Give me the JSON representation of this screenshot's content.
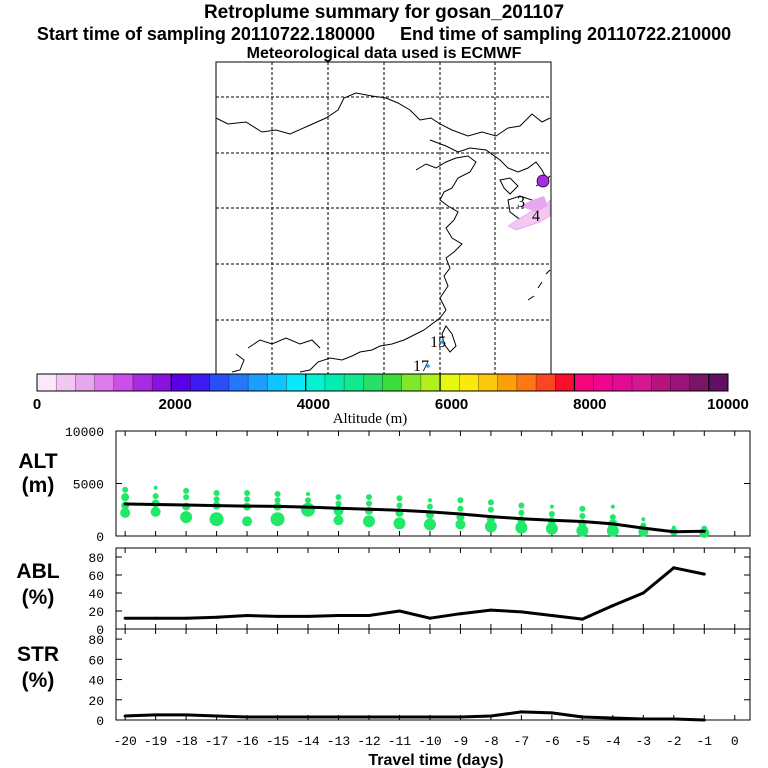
{
  "header": {
    "title": "Retroplume summary for gosan_201107",
    "sampling_line": "Start time of sampling 20110722.180000     End time of sampling 20110722.210000",
    "met_line": "Meteorological data used is ECMWF"
  },
  "map": {
    "labels": [
      "3",
      "4",
      "15",
      "17"
    ]
  },
  "colorbar": {
    "title": "Altitude (m)",
    "ticks": [
      "0",
      "2000",
      "4000",
      "6000",
      "8000",
      "10000"
    ],
    "colors": [
      "#fbe8fb",
      "#f2c8f3",
      "#e8a6ee",
      "#dd7ceb",
      "#cc4fe8",
      "#a82ae3",
      "#8a12e0",
      "#5a00e6",
      "#3c1cf2",
      "#2a4ff8",
      "#2577fb",
      "#1c9efd",
      "#10c5fd",
      "#0ae8fb",
      "#05f2d2",
      "#05ecb1",
      "#12e88c",
      "#26e06a",
      "#3cdc3c",
      "#7fe82a",
      "#b2f01c",
      "#e6f812",
      "#fbe80c",
      "#fcc80a",
      "#fca00a",
      "#fc7814",
      "#fc4622",
      "#fb0d2b",
      "#f5057a",
      "#ef0590",
      "#e40a98",
      "#d41892",
      "#b8127e",
      "#9c1478",
      "#7a1466",
      "#601060"
    ]
  },
  "chart_data": [
    {
      "type": "line",
      "panel": "ALT",
      "ylabel": [
        "ALT",
        "(m)"
      ],
      "ylim": [
        0,
        10000
      ],
      "yticks": [
        "0",
        "5000",
        "10000"
      ],
      "x": [
        -20,
        -19,
        -18,
        -17,
        -16,
        -15,
        -14,
        -13,
        -12,
        -11,
        -10,
        -9,
        -8,
        -7,
        -6,
        -5,
        -4,
        -3,
        -2,
        -1
      ],
      "values": [
        3050,
        3000,
        2950,
        2900,
        2850,
        2820,
        2750,
        2650,
        2550,
        2450,
        2300,
        2100,
        1850,
        1650,
        1500,
        1380,
        1150,
        750,
        400,
        450
      ],
      "spread_points": [
        {
          "x": -20,
          "y": 2200,
          "s": 5
        },
        {
          "x": -20,
          "y": 2900,
          "s": 4
        },
        {
          "x": -20,
          "y": 3700,
          "s": 4
        },
        {
          "x": -20,
          "y": 4400,
          "s": 3
        },
        {
          "x": -19,
          "y": 2300,
          "s": 5
        },
        {
          "x": -19,
          "y": 3100,
          "s": 4
        },
        {
          "x": -19,
          "y": 3800,
          "s": 3
        },
        {
          "x": -19,
          "y": 4600,
          "s": 2
        },
        {
          "x": -18,
          "y": 1800,
          "s": 6
        },
        {
          "x": -18,
          "y": 2800,
          "s": 4
        },
        {
          "x": -18,
          "y": 3700,
          "s": 3
        },
        {
          "x": -18,
          "y": 4300,
          "s": 3
        },
        {
          "x": -17,
          "y": 1600,
          "s": 7
        },
        {
          "x": -17,
          "y": 2900,
          "s": 4
        },
        {
          "x": -17,
          "y": 3500,
          "s": 3
        },
        {
          "x": -17,
          "y": 4100,
          "s": 3
        },
        {
          "x": -16,
          "y": 1400,
          "s": 5
        },
        {
          "x": -16,
          "y": 2800,
          "s": 4
        },
        {
          "x": -16,
          "y": 3500,
          "s": 3
        },
        {
          "x": -16,
          "y": 4100,
          "s": 3
        },
        {
          "x": -15,
          "y": 1600,
          "s": 7
        },
        {
          "x": -15,
          "y": 2800,
          "s": 4
        },
        {
          "x": -15,
          "y": 3400,
          "s": 3
        },
        {
          "x": -15,
          "y": 4000,
          "s": 3
        },
        {
          "x": -14,
          "y": 2500,
          "s": 7
        },
        {
          "x": -14,
          "y": 3400,
          "s": 3
        },
        {
          "x": -14,
          "y": 4000,
          "s": 2
        },
        {
          "x": -13,
          "y": 1500,
          "s": 5
        },
        {
          "x": -13,
          "y": 2400,
          "s": 5
        },
        {
          "x": -13,
          "y": 3100,
          "s": 3
        },
        {
          "x": -13,
          "y": 3700,
          "s": 3
        },
        {
          "x": -12,
          "y": 1400,
          "s": 6
        },
        {
          "x": -12,
          "y": 2400,
          "s": 4
        },
        {
          "x": -12,
          "y": 3100,
          "s": 3
        },
        {
          "x": -12,
          "y": 3700,
          "s": 3
        },
        {
          "x": -11,
          "y": 1200,
          "s": 6
        },
        {
          "x": -11,
          "y": 2200,
          "s": 4
        },
        {
          "x": -11,
          "y": 2900,
          "s": 3
        },
        {
          "x": -11,
          "y": 3600,
          "s": 3
        },
        {
          "x": -10,
          "y": 1100,
          "s": 6
        },
        {
          "x": -10,
          "y": 2000,
          "s": 4
        },
        {
          "x": -10,
          "y": 2800,
          "s": 3
        },
        {
          "x": -10,
          "y": 3400,
          "s": 2
        },
        {
          "x": -9,
          "y": 1100,
          "s": 5
        },
        {
          "x": -9,
          "y": 1800,
          "s": 4
        },
        {
          "x": -9,
          "y": 2600,
          "s": 3
        },
        {
          "x": -9,
          "y": 3400,
          "s": 3
        },
        {
          "x": -8,
          "y": 900,
          "s": 6
        },
        {
          "x": -8,
          "y": 1600,
          "s": 4
        },
        {
          "x": -8,
          "y": 2500,
          "s": 3
        },
        {
          "x": -8,
          "y": 3200,
          "s": 3
        },
        {
          "x": -7,
          "y": 800,
          "s": 6
        },
        {
          "x": -7,
          "y": 1500,
          "s": 4
        },
        {
          "x": -7,
          "y": 2200,
          "s": 3
        },
        {
          "x": -7,
          "y": 2900,
          "s": 3
        },
        {
          "x": -6,
          "y": 700,
          "s": 6
        },
        {
          "x": -6,
          "y": 1400,
          "s": 4
        },
        {
          "x": -6,
          "y": 2100,
          "s": 3
        },
        {
          "x": -6,
          "y": 2800,
          "s": 2
        },
        {
          "x": -5,
          "y": 500,
          "s": 6
        },
        {
          "x": -5,
          "y": 1200,
          "s": 4
        },
        {
          "x": -5,
          "y": 1900,
          "s": 3
        },
        {
          "x": -5,
          "y": 2600,
          "s": 3
        },
        {
          "x": -4,
          "y": 500,
          "s": 6
        },
        {
          "x": -4,
          "y": 1100,
          "s": 5
        },
        {
          "x": -4,
          "y": 1800,
          "s": 3
        },
        {
          "x": -4,
          "y": 2800,
          "s": 2
        },
        {
          "x": -3,
          "y": 400,
          "s": 5
        },
        {
          "x": -3,
          "y": 1000,
          "s": 3
        },
        {
          "x": -3,
          "y": 1600,
          "s": 2
        },
        {
          "x": -2,
          "y": 400,
          "s": 4
        },
        {
          "x": -2,
          "y": 800,
          "s": 2
        },
        {
          "x": -1,
          "y": 300,
          "s": 5
        },
        {
          "x": -1,
          "y": 700,
          "s": 3
        }
      ],
      "color": "#22e86a"
    },
    {
      "type": "line",
      "panel": "ABL",
      "ylabel": [
        "ABL",
        "(%)"
      ],
      "ylim": [
        0,
        90
      ],
      "yticks": [
        "0",
        "20",
        "40",
        "60",
        "80"
      ],
      "x": [
        -20,
        -19,
        -18,
        -17,
        -16,
        -15,
        -14,
        -13,
        -12,
        -11,
        -10,
        -9,
        -8,
        -7,
        -6,
        -5,
        -4,
        -3,
        -2,
        -1
      ],
      "values": [
        12,
        12,
        12,
        13,
        15,
        14,
        14,
        15,
        15,
        20,
        12,
        17,
        21,
        19,
        15,
        11,
        26,
        40,
        68,
        61
      ]
    },
    {
      "type": "line",
      "panel": "STR",
      "ylabel": [
        "STR",
        "(%)"
      ],
      "ylim": [
        0,
        90
      ],
      "yticks": [
        "0",
        "20",
        "40",
        "60",
        "80"
      ],
      "x": [
        -20,
        -19,
        -18,
        -17,
        -16,
        -15,
        -14,
        -13,
        -12,
        -11,
        -10,
        -9,
        -8,
        -7,
        -6,
        -5,
        -4,
        -3,
        -2,
        -1
      ],
      "values": [
        4,
        5,
        5,
        4,
        3,
        3,
        3,
        3,
        3,
        3,
        3,
        3,
        4,
        8,
        7,
        3,
        2,
        1,
        1,
        0
      ],
      "xlabel": "Travel time (days)",
      "xticks": [
        "-20",
        "-19",
        "-18",
        "-17",
        "-16",
        "-15",
        "-14",
        "-13",
        "-12",
        "-11",
        "-10",
        "-9",
        "-8",
        "-7",
        "-6",
        "-5",
        "-4",
        "-3",
        "-2",
        "-1",
        "0"
      ]
    }
  ]
}
